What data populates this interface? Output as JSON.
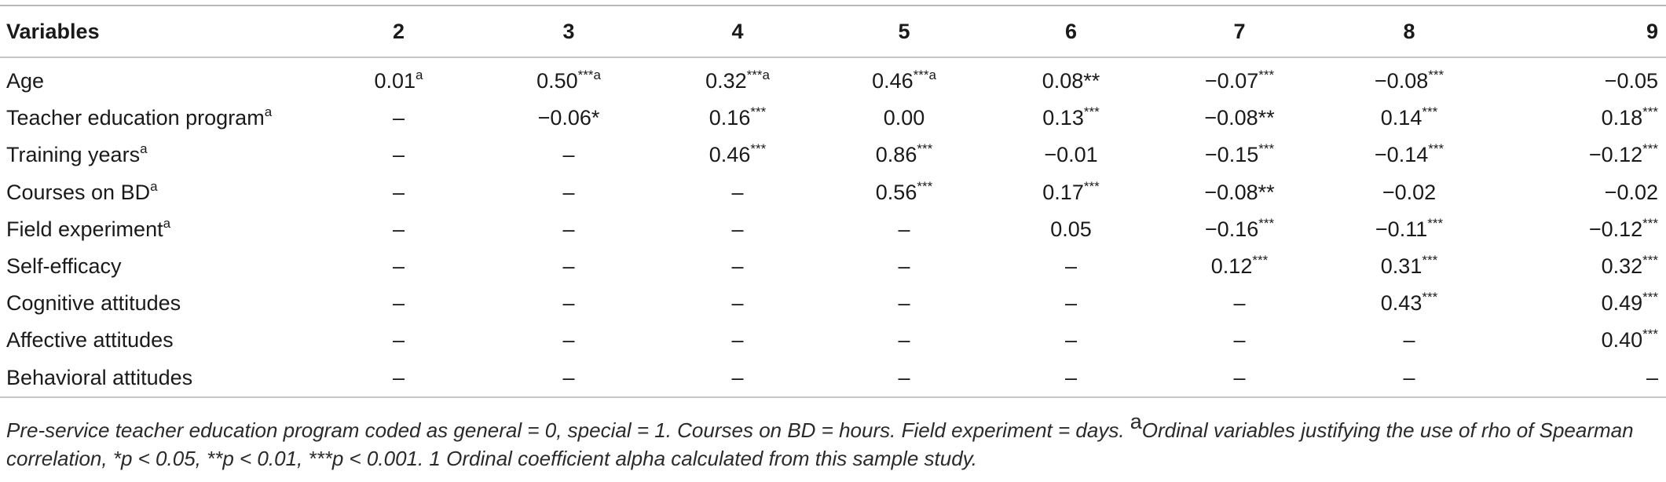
{
  "table": {
    "headers": [
      "Variables",
      "2",
      "3",
      "4",
      "5",
      "6",
      "7",
      "8",
      "9"
    ],
    "rows": [
      {
        "label": "Age",
        "label_sup": "",
        "cells": [
          {
            "v": "0.01",
            "s": "a"
          },
          {
            "v": "0.50",
            "s": "***a"
          },
          {
            "v": "0.32",
            "s": "***a"
          },
          {
            "v": "0.46",
            "s": "***a"
          },
          {
            "v": "0.08**",
            "s": ""
          },
          {
            "v": "−0.07",
            "s": "***"
          },
          {
            "v": "−0.08",
            "s": "***"
          },
          {
            "v": "−0.05",
            "s": ""
          }
        ]
      },
      {
        "label": "Teacher education program",
        "label_sup": "a",
        "cells": [
          {
            "v": "–",
            "s": ""
          },
          {
            "v": "−0.06*",
            "s": ""
          },
          {
            "v": "0.16",
            "s": "***"
          },
          {
            "v": "0.00",
            "s": ""
          },
          {
            "v": "0.13",
            "s": "***"
          },
          {
            "v": "−0.08**",
            "s": ""
          },
          {
            "v": "0.14",
            "s": "***"
          },
          {
            "v": "0.18",
            "s": "***"
          }
        ]
      },
      {
        "label": "Training years",
        "label_sup": "a",
        "cells": [
          {
            "v": "–",
            "s": ""
          },
          {
            "v": "–",
            "s": ""
          },
          {
            "v": "0.46",
            "s": "***"
          },
          {
            "v": "0.86",
            "s": "***"
          },
          {
            "v": "−0.01",
            "s": ""
          },
          {
            "v": "−0.15",
            "s": "***"
          },
          {
            "v": "−0.14",
            "s": "***"
          },
          {
            "v": "−0.12",
            "s": "***"
          }
        ]
      },
      {
        "label": "Courses on BD",
        "label_sup": "a",
        "cells": [
          {
            "v": "–",
            "s": ""
          },
          {
            "v": "–",
            "s": ""
          },
          {
            "v": "–",
            "s": ""
          },
          {
            "v": "0.56",
            "s": "***"
          },
          {
            "v": "0.17",
            "s": "***"
          },
          {
            "v": "−0.08**",
            "s": ""
          },
          {
            "v": "−0.02",
            "s": ""
          },
          {
            "v": "−0.02",
            "s": ""
          }
        ]
      },
      {
        "label": "Field experiment",
        "label_sup": "a",
        "cells": [
          {
            "v": "–",
            "s": ""
          },
          {
            "v": "–",
            "s": ""
          },
          {
            "v": "–",
            "s": ""
          },
          {
            "v": "–",
            "s": ""
          },
          {
            "v": "0.05",
            "s": ""
          },
          {
            "v": "−0.16",
            "s": "***"
          },
          {
            "v": "−0.11",
            "s": "***"
          },
          {
            "v": "−0.12",
            "s": "***"
          }
        ]
      },
      {
        "label": "Self-efficacy",
        "label_sup": "",
        "cells": [
          {
            "v": "–",
            "s": ""
          },
          {
            "v": "–",
            "s": ""
          },
          {
            "v": "–",
            "s": ""
          },
          {
            "v": "–",
            "s": ""
          },
          {
            "v": "–",
            "s": ""
          },
          {
            "v": "0.12",
            "s": "***"
          },
          {
            "v": "0.31",
            "s": "***"
          },
          {
            "v": "0.32",
            "s": "***"
          }
        ]
      },
      {
        "label": "Cognitive attitudes",
        "label_sup": "",
        "cells": [
          {
            "v": "–",
            "s": ""
          },
          {
            "v": "–",
            "s": ""
          },
          {
            "v": "–",
            "s": ""
          },
          {
            "v": "–",
            "s": ""
          },
          {
            "v": "–",
            "s": ""
          },
          {
            "v": "–",
            "s": ""
          },
          {
            "v": "0.43",
            "s": "***"
          },
          {
            "v": "0.49",
            "s": "***"
          }
        ]
      },
      {
        "label": "Affective attitudes",
        "label_sup": "",
        "cells": [
          {
            "v": "–",
            "s": ""
          },
          {
            "v": "–",
            "s": ""
          },
          {
            "v": "–",
            "s": ""
          },
          {
            "v": "–",
            "s": ""
          },
          {
            "v": "–",
            "s": ""
          },
          {
            "v": "–",
            "s": ""
          },
          {
            "v": "–",
            "s": ""
          },
          {
            "v": "0.40",
            "s": "***"
          }
        ]
      },
      {
        "label": "Behavioral attitudes",
        "label_sup": "",
        "cells": [
          {
            "v": "–",
            "s": ""
          },
          {
            "v": "–",
            "s": ""
          },
          {
            "v": "–",
            "s": ""
          },
          {
            "v": "–",
            "s": ""
          },
          {
            "v": "–",
            "s": ""
          },
          {
            "v": "–",
            "s": ""
          },
          {
            "v": "–",
            "s": ""
          },
          {
            "v": "–",
            "s": ""
          }
        ]
      }
    ]
  },
  "note": {
    "part1": "Pre-service teacher education program coded as general = 0, special = 1. Courses on BD = hours. Field experiment = days. ",
    "sup": "a",
    "part2": "Ordinal variables justifying the use of rho of Spearman correlation, *p < 0.05, **p < 0.01, ***p < 0.001. 1 Ordinal coefficient alpha calculated from this sample study."
  }
}
